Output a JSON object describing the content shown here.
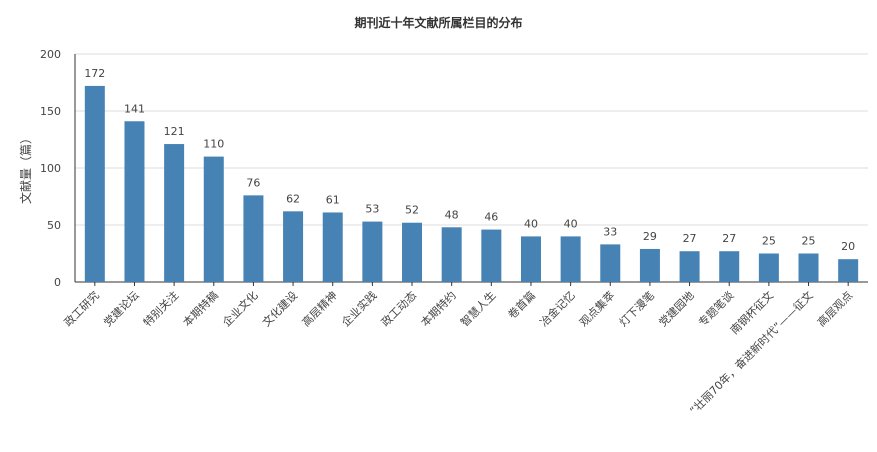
{
  "chart_data": {
    "type": "bar",
    "title": "期刊近十年文献所属栏目的分布",
    "ylabel": "文献量（篇）",
    "xlabel": "",
    "ylim": [
      0,
      200
    ],
    "yticks": [
      0,
      50,
      100,
      150,
      200
    ],
    "grid": true,
    "bar_color": "#4682b4",
    "categories": [
      "政工研究",
      "党建论坛",
      "特别关注",
      "本期特稿",
      "企业文化",
      "文化建设",
      "高层精神",
      "企业实践",
      "政工动态",
      "本期特约",
      "智慧人生",
      "卷首篇",
      "冶金记忆",
      "观点集萃",
      "灯下漫笔",
      "党建园地",
      "专题笔谈",
      "南钢杯征文",
      "“壮丽70年，奋进新时代”——征文",
      "高层观点"
    ],
    "values": [
      172,
      141,
      121,
      110,
      76,
      62,
      61,
      53,
      52,
      48,
      46,
      40,
      40,
      33,
      29,
      27,
      27,
      25,
      25,
      20
    ]
  }
}
